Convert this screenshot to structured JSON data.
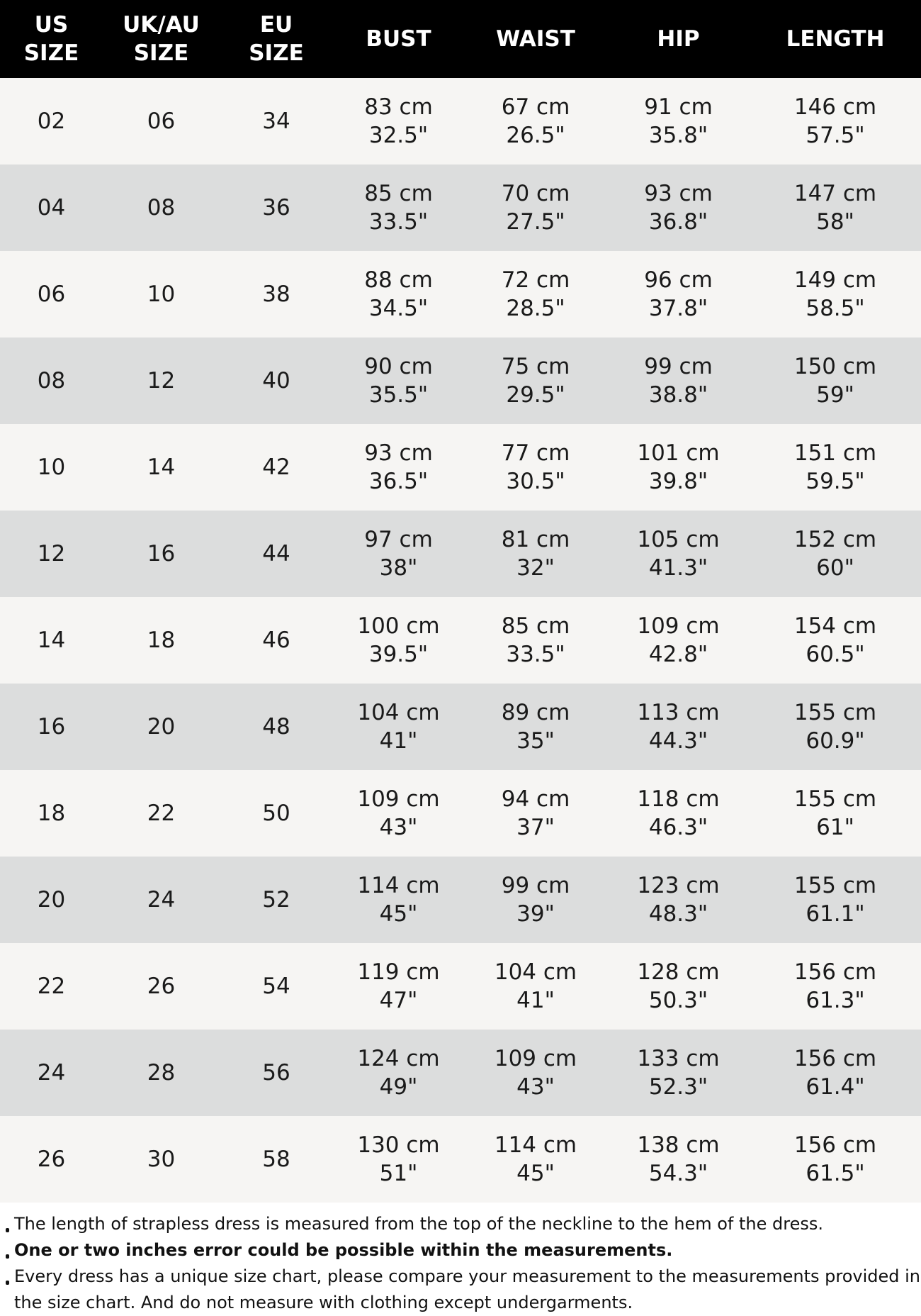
{
  "headers": [
    [
      "US",
      "SIZE"
    ],
    [
      "UK/AU",
      "SIZE"
    ],
    [
      "EU",
      "SIZE"
    ],
    [
      "BUST"
    ],
    [
      "WAIST"
    ],
    [
      "HIP"
    ],
    [
      "LENGTH"
    ]
  ],
  "rows": [
    [
      "02",
      "06",
      "34",
      [
        "83 cm",
        "32.5\""
      ],
      [
        "67 cm",
        "26.5\""
      ],
      [
        "91 cm",
        "35.8\""
      ],
      [
        "146 cm",
        "57.5\""
      ]
    ],
    [
      "04",
      "08",
      "36",
      [
        "85 cm",
        "33.5\""
      ],
      [
        "70 cm",
        "27.5\""
      ],
      [
        "93 cm",
        "36.8\""
      ],
      [
        "147 cm",
        "58\""
      ]
    ],
    [
      "06",
      "10",
      "38",
      [
        "88 cm",
        "34.5\""
      ],
      [
        "72 cm",
        "28.5\""
      ],
      [
        "96 cm",
        "37.8\""
      ],
      [
        "149 cm",
        "58.5\""
      ]
    ],
    [
      "08",
      "12",
      "40",
      [
        "90 cm",
        "35.5\""
      ],
      [
        "75 cm",
        "29.5\""
      ],
      [
        "99 cm",
        "38.8\""
      ],
      [
        "150 cm",
        "59\""
      ]
    ],
    [
      "10",
      "14",
      "42",
      [
        "93 cm",
        "36.5\""
      ],
      [
        "77 cm",
        "30.5\""
      ],
      [
        "101 cm",
        "39.8\""
      ],
      [
        "151 cm",
        "59.5\""
      ]
    ],
    [
      "12",
      "16",
      "44",
      [
        "97 cm",
        "38\""
      ],
      [
        "81 cm",
        "32\""
      ],
      [
        "105 cm",
        "41.3\""
      ],
      [
        "152 cm",
        "60\""
      ]
    ],
    [
      "14",
      "18",
      "46",
      [
        "100 cm",
        "39.5\""
      ],
      [
        "85 cm",
        "33.5\""
      ],
      [
        "109 cm",
        "42.8\""
      ],
      [
        "154 cm",
        "60.5\""
      ]
    ],
    [
      "16",
      "20",
      "48",
      [
        "104 cm",
        "41\""
      ],
      [
        "89 cm",
        "35\""
      ],
      [
        "113 cm",
        "44.3\""
      ],
      [
        "155 cm",
        "60.9\""
      ]
    ],
    [
      "18",
      "22",
      "50",
      [
        "109 cm",
        "43\""
      ],
      [
        "94 cm",
        "37\""
      ],
      [
        "118 cm",
        "46.3\""
      ],
      [
        "155 cm",
        "61\""
      ]
    ],
    [
      "20",
      "24",
      "52",
      [
        "114 cm",
        "45\""
      ],
      [
        "99 cm",
        "39\""
      ],
      [
        "123 cm",
        "48.3\""
      ],
      [
        "155 cm",
        "61.1\""
      ]
    ],
    [
      "22",
      "26",
      "54",
      [
        "119 cm",
        "47\""
      ],
      [
        "104 cm",
        "41\""
      ],
      [
        "128 cm",
        "50.3\""
      ],
      [
        "156 cm",
        "61.3\""
      ]
    ],
    [
      "24",
      "28",
      "56",
      [
        "124 cm",
        "49\""
      ],
      [
        "109 cm",
        "43\""
      ],
      [
        "133 cm",
        "52.3\""
      ],
      [
        "156 cm",
        "61.4\""
      ]
    ],
    [
      "26",
      "30",
      "58",
      [
        "130 cm",
        "51\""
      ],
      [
        "114 cm",
        "45\""
      ],
      [
        "138 cm",
        "54.3\""
      ],
      [
        "156 cm",
        "61.5\""
      ]
    ]
  ],
  "notes": [
    {
      "text": "The length of strapless dress is measured from the top of the neckline to the hem of the dress.",
      "bold": false
    },
    {
      "text": "One or two inches error could be possible within the measurements.",
      "bold": true
    },
    {
      "text": "Every dress has a unique size chart, please compare your measurement to the measurements provided in the size chart. And do not measure with clothing except undergarments.",
      "bold": false
    }
  ],
  "colors": {
    "header_bg": "#000000",
    "row_light": "#f6f5f3",
    "row_dark": "#dcdddd"
  }
}
